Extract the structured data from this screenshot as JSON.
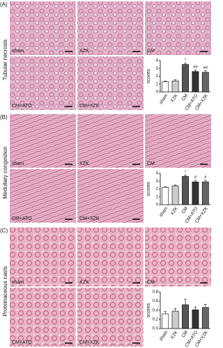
{
  "panels": [
    {
      "label": "(A)",
      "title": "Tubular necrosis",
      "image_labels": [
        "sham",
        "XZK",
        "CM",
        "CM+ATO",
        "CM+XZK"
      ]
    },
    {
      "label": "(B)",
      "title": "Medullary congestion",
      "image_labels": [
        "sham",
        "XZK",
        "CM",
        "CM+ATO",
        "CM+XZK"
      ]
    },
    {
      "label": "(C)",
      "title": "Proteinaceous casts",
      "image_labels": [
        "sham",
        "XZK",
        "CM",
        "CM+ATO",
        "CM+XZK"
      ]
    }
  ],
  "chart_data": [
    {
      "type": "bar",
      "categories": [
        "sham",
        "XZK",
        "CM",
        "CM+ATO",
        "CM+XZK"
      ],
      "y_label": "scores",
      "values": [
        1.3,
        1.4,
        3.5,
        2.6,
        2.5
      ],
      "errors": [
        0.1,
        0.15,
        0.15,
        0.2,
        0.2
      ],
      "bar_labels": [
        null,
        null,
        "*",
        "##",
        "##"
      ],
      "colors": [
        "#ffffff",
        "#cccccc",
        "#555555",
        "#333333",
        "#666666"
      ],
      "ylim": [
        0,
        4
      ],
      "yticks": [
        0,
        1,
        2,
        3,
        4
      ]
    },
    {
      "type": "bar",
      "categories": [
        "sham",
        "XZK",
        "CM",
        "CM+ATO",
        "CM+XZK"
      ],
      "y_label": "scores",
      "values": [
        2.2,
        2.4,
        3.6,
        2.9,
        2.9
      ],
      "errors": [
        0.1,
        0.1,
        0.15,
        0.2,
        0.2
      ],
      "bar_labels": [
        null,
        null,
        "*",
        "#",
        "#"
      ],
      "colors": [
        "#ffffff",
        "#cccccc",
        "#555555",
        "#333333",
        "#666666"
      ],
      "ylim": [
        0,
        4
      ],
      "yticks": [
        0,
        1,
        2,
        3,
        4
      ]
    },
    {
      "type": "bar",
      "categories": [
        "sham",
        "XZK",
        "CM",
        "CM+ATO",
        "CM+XZK"
      ],
      "y_label": "scores",
      "values": [
        0.32,
        0.38,
        0.52,
        0.41,
        0.46
      ],
      "errors": [
        0.05,
        0.06,
        0.12,
        0.06,
        0.07
      ],
      "bar_labels": [
        null,
        null,
        null,
        null,
        null
      ],
      "colors": [
        "#ffffff",
        "#cccccc",
        "#555555",
        "#333333",
        "#666666"
      ],
      "ylim": [
        0,
        0.8
      ],
      "yticks": [
        {
          "value": 0,
          "label": "0.0"
        },
        0.2,
        0.4,
        0.6,
        0.8
      ]
    }
  ]
}
